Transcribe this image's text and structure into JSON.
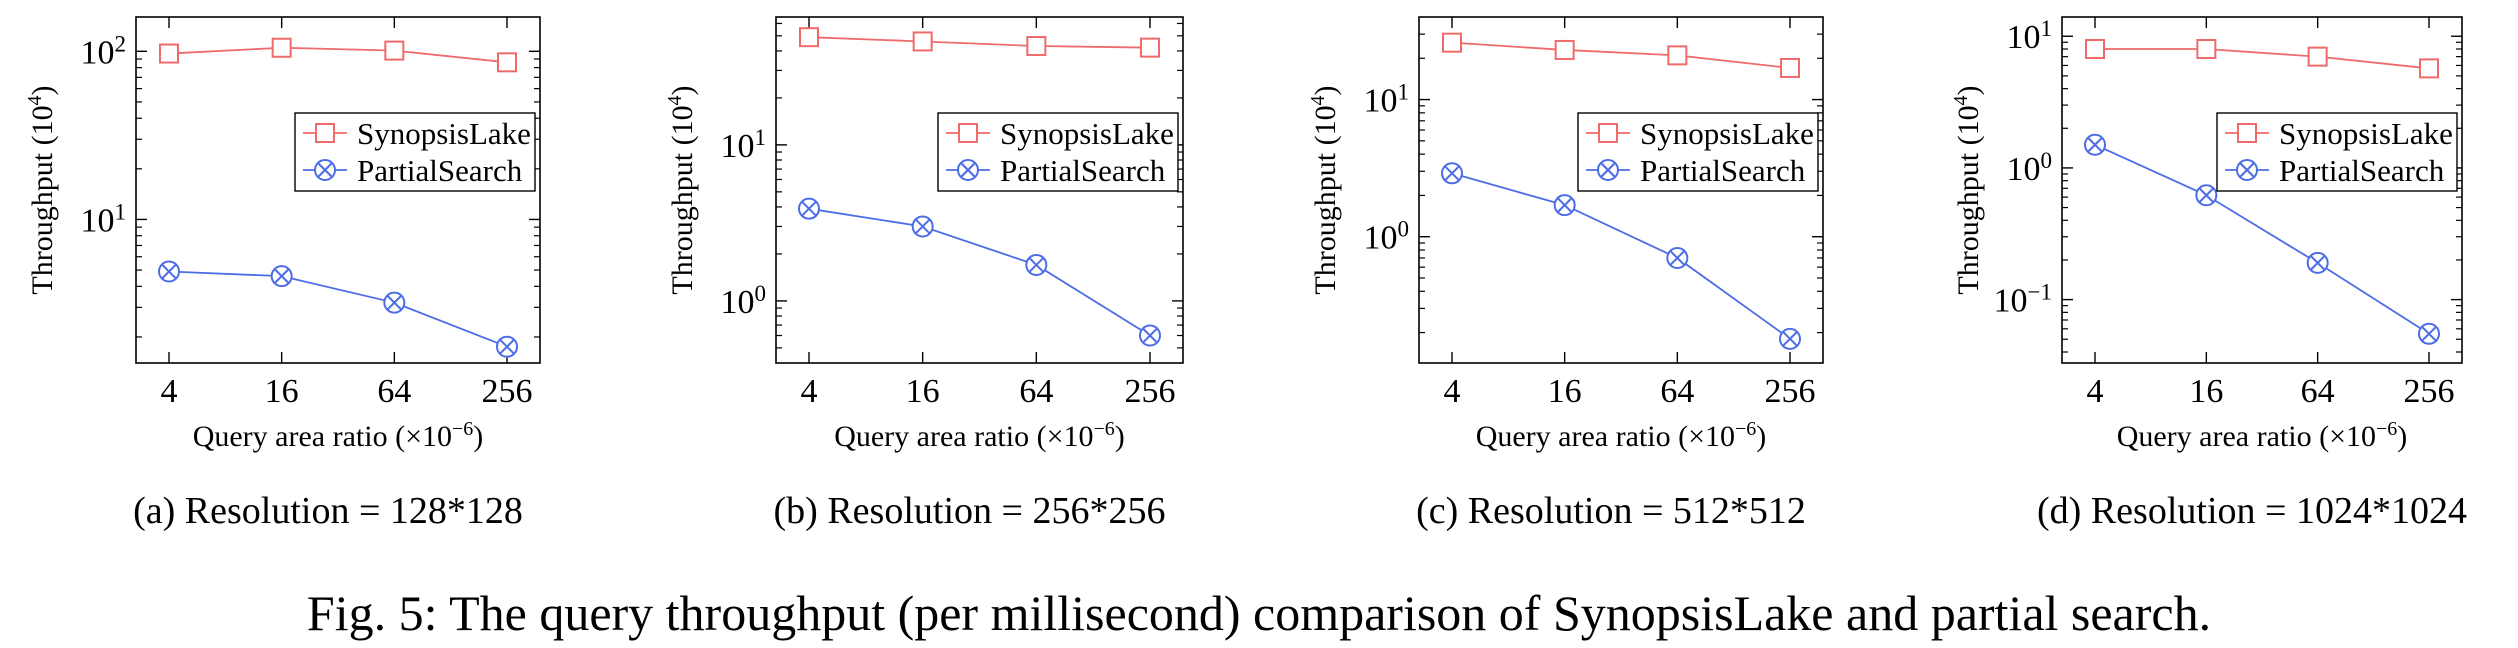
{
  "figure_caption": "Fig. 5: The query throughput (per millisecond) comparison of SynopsisLake and partial search.",
  "colors": {
    "synopsis": "#ef6a6a",
    "partial": "#4d6de6",
    "axis": "#000000"
  },
  "chart_data": [
    {
      "type": "line",
      "caption": "(a) Resolution = 128*128",
      "xlabel": "Query area ratio (×10",
      "xlabel_exp": "−6",
      "ylabel": "Throughput (10",
      "ylabel_exp": "4",
      "yscale": "log",
      "ylim": [
        1.4,
        160
      ],
      "categories": [
        "4",
        "16",
        "64",
        "256"
      ],
      "yticks": [
        {
          "value": 10,
          "label": "10",
          "exp": "1"
        },
        {
          "value": 100,
          "label": "10",
          "exp": "2"
        }
      ],
      "legend": "right-middle",
      "series": [
        {
          "name": "SynopsisLake",
          "marker": "square",
          "values": [
            97,
            105,
            101,
            86
          ]
        },
        {
          "name": "PartialSearch",
          "marker": "circle-x",
          "values": [
            4.9,
            4.6,
            3.2,
            1.75
          ]
        }
      ]
    },
    {
      "type": "line",
      "caption": "(b) Resolution = 256*256",
      "xlabel": "Query area ratio (×10",
      "xlabel_exp": "−6",
      "ylabel": "Throughput (10",
      "ylabel_exp": "4",
      "yscale": "log",
      "ylim": [
        0.4,
        66
      ],
      "categories": [
        "4",
        "16",
        "64",
        "256"
      ],
      "yticks": [
        {
          "value": 1,
          "label": "10",
          "exp": "0"
        },
        {
          "value": 10,
          "label": "10",
          "exp": "1"
        }
      ],
      "legend": "right-middle",
      "series": [
        {
          "name": "SynopsisLake",
          "marker": "square",
          "values": [
            49,
            46,
            43,
            42
          ]
        },
        {
          "name": "PartialSearch",
          "marker": "circle-x",
          "values": [
            3.9,
            3.0,
            1.7,
            0.6
          ]
        }
      ]
    },
    {
      "type": "line",
      "caption": "(c) Resolution = 512*512",
      "xlabel": "Query area ratio (×10",
      "xlabel_exp": "−6",
      "ylabel": "Throughput (10",
      "ylabel_exp": "4",
      "yscale": "log",
      "ylim": [
        0.12,
        40
      ],
      "categories": [
        "4",
        "16",
        "64",
        "256"
      ],
      "yticks": [
        {
          "value": 1,
          "label": "10",
          "exp": "0"
        },
        {
          "value": 10,
          "label": "10",
          "exp": "1"
        }
      ],
      "legend": "right-middle",
      "series": [
        {
          "name": "SynopsisLake",
          "marker": "square",
          "values": [
            26,
            23,
            21,
            17
          ]
        },
        {
          "name": "PartialSearch",
          "marker": "circle-x",
          "values": [
            2.9,
            1.7,
            0.7,
            0.18
          ]
        }
      ]
    },
    {
      "type": "line",
      "caption": "(d) Resolution = 1024*1024",
      "xlabel": "Query area ratio (×10",
      "xlabel_exp": "−6",
      "ylabel": "Throughput (10",
      "ylabel_exp": "4",
      "yscale": "log",
      "ylim": [
        0.033,
        14
      ],
      "categories": [
        "4",
        "16",
        "64",
        "256"
      ],
      "yticks": [
        {
          "value": 0.1,
          "label": "10",
          "exp": "−1"
        },
        {
          "value": 1,
          "label": "10",
          "exp": "0"
        },
        {
          "value": 10,
          "label": "10",
          "exp": "1"
        }
      ],
      "legend": "right-middle",
      "series": [
        {
          "name": "SynopsisLake",
          "marker": "square",
          "values": [
            8.0,
            8.0,
            7.0,
            5.7
          ]
        },
        {
          "name": "PartialSearch",
          "marker": "circle-x",
          "values": [
            1.5,
            0.62,
            0.19,
            0.055
          ]
        }
      ]
    }
  ]
}
